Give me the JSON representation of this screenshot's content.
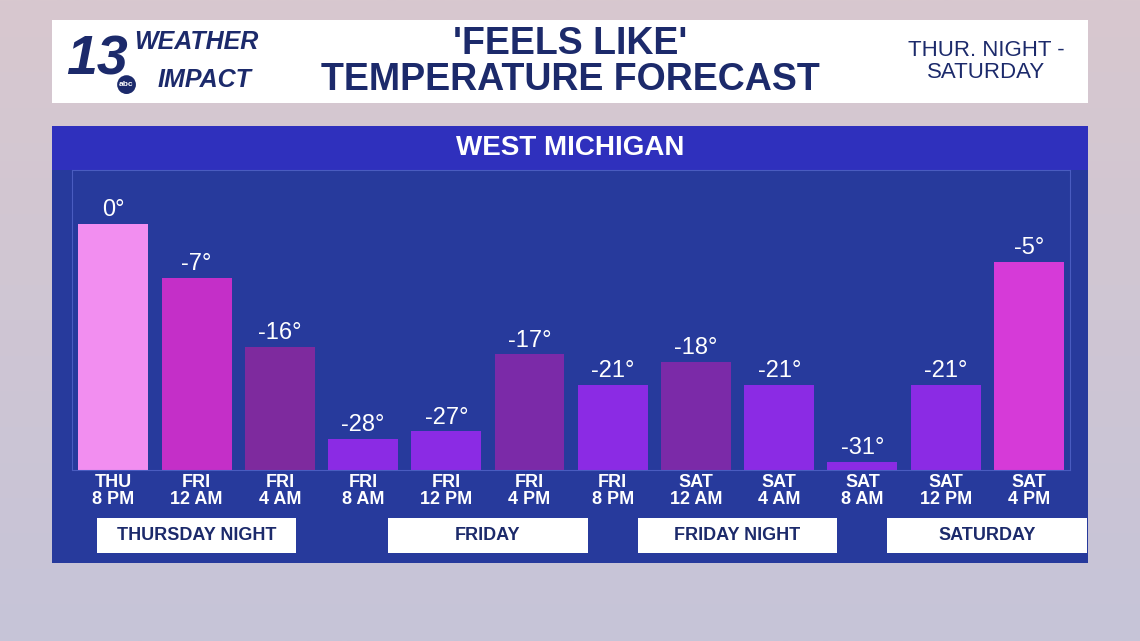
{
  "chart_data": {
    "type": "bar",
    "logo": {
      "number": "13",
      "line1": "WEATHER",
      "line2": "IMPACT",
      "network": "abc"
    },
    "title": "'FEELS LIKE'\nTEMPERATURE FORECAST",
    "subtitle": "THUR. NIGHT -\nSATURDAY",
    "panel_title": "WEST MICHIGAN",
    "categories": [
      "THU\n8 PM",
      "FRI\n12 AM",
      "FRI\n4 AM",
      "FRI\n8 AM",
      "FRI\n12 PM",
      "FRI\n4 PM",
      "FRI\n8 PM",
      "SAT\n12 AM",
      "SAT\n4 AM",
      "SAT\n8 AM",
      "SAT\n12 PM",
      "SAT\n4 PM"
    ],
    "values": [
      0,
      -7,
      -16,
      -28,
      -27,
      -17,
      -21,
      -18,
      -21,
      -31,
      -21,
      -5
    ],
    "value_labels": [
      "0°",
      "-7°",
      "-16°",
      "-28°",
      "-27°",
      "-17°",
      "-21°",
      "-18°",
      "-21°",
      "-31°",
      "-21°",
      "-5°"
    ],
    "data_labels": true,
    "colors": [
      "#f28ef0",
      "#c42fc8",
      "#7e2a9e",
      "#8b2be4",
      "#8b2be4",
      "#7b2aa8",
      "#8b2be4",
      "#7b2aa8",
      "#8b2be4",
      "#8b2be4",
      "#8b2be4",
      "#d63ad8"
    ],
    "groups": [
      "THURSDAY NIGHT",
      "FRIDAY",
      "FRIDAY NIGHT",
      "SATURDAY"
    ],
    "ylim": [
      -32,
      7
    ],
    "yticks": [],
    "grid": false,
    "tick_labels": "x"
  }
}
